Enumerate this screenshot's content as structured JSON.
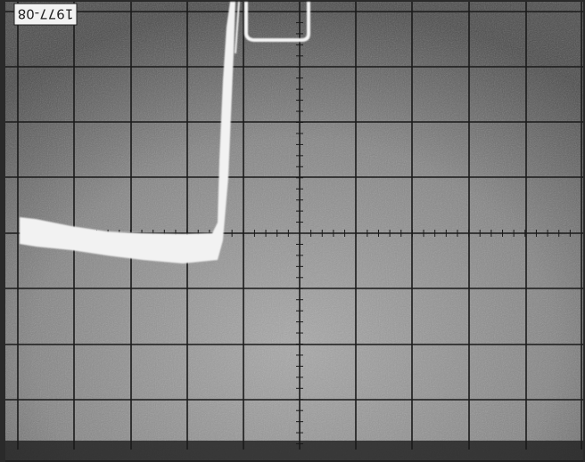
{
  "label": "1977-08"
}
